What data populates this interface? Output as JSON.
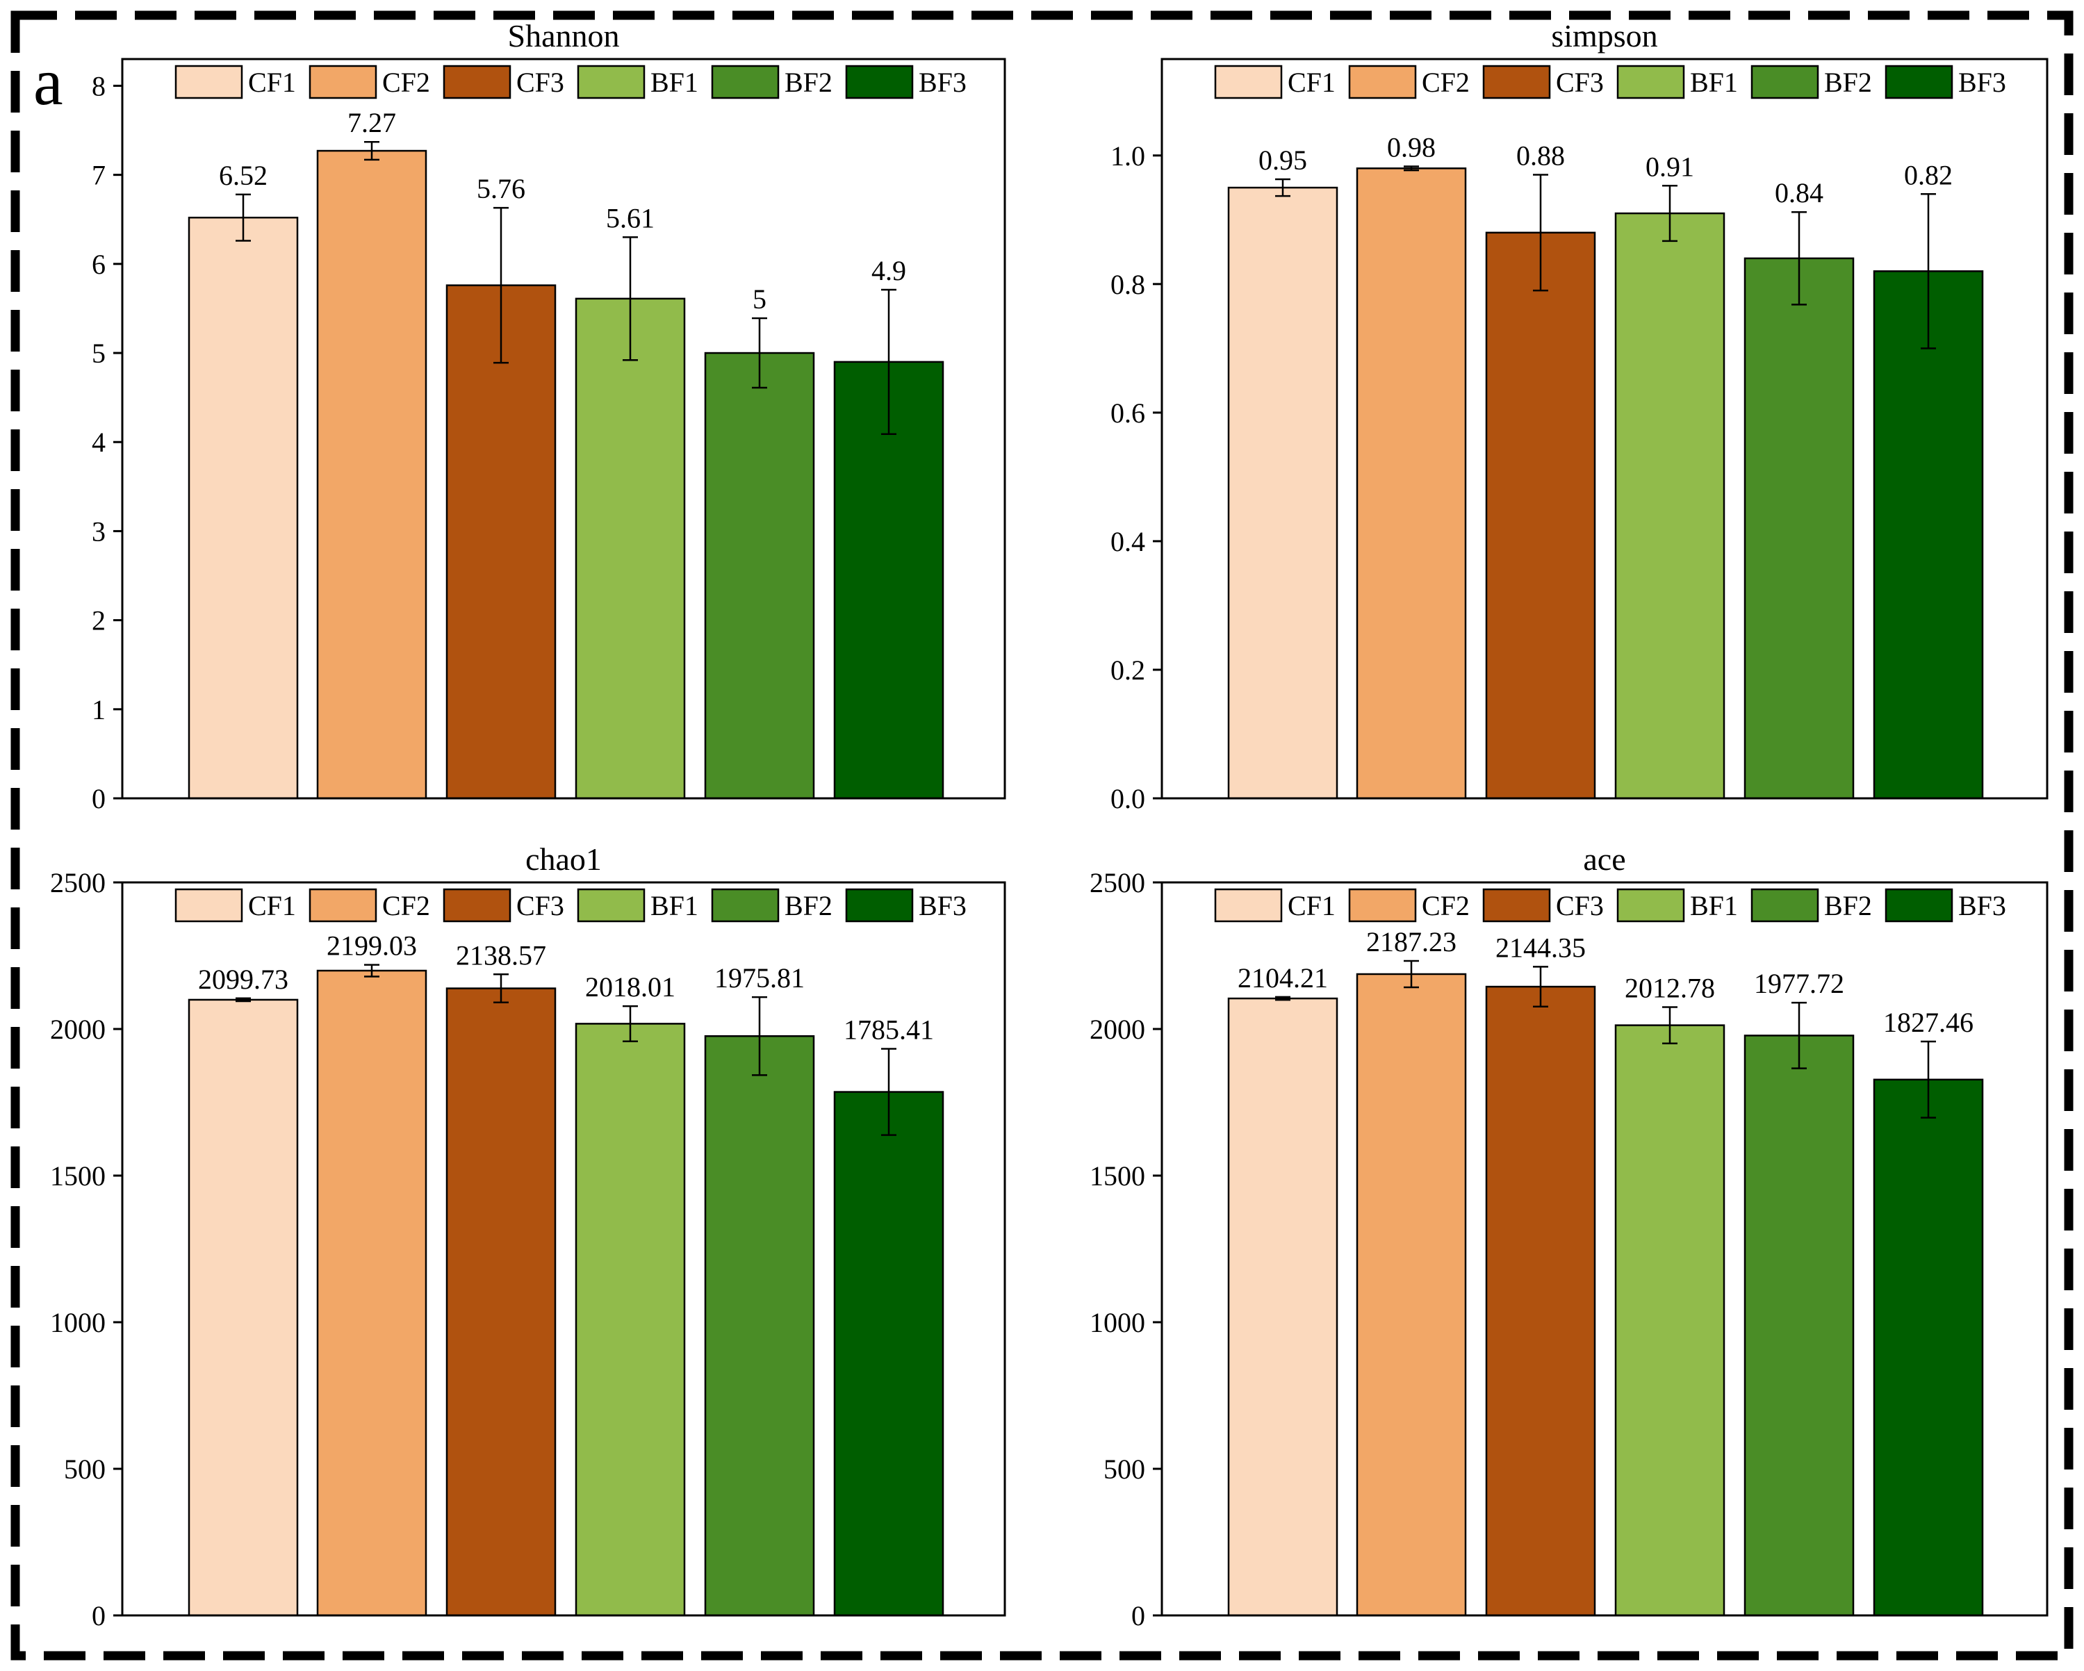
{
  "panel_label": "a",
  "legend": [
    "CF1",
    "CF2",
    "CF3",
    "BF1",
    "BF2",
    "BF3"
  ],
  "colors": {
    "CF1": "#fbd9bd",
    "CF2": "#f2a767",
    "CF3": "#b0520f",
    "BF1": "#91bb4b",
    "BF2": "#4a8d26",
    "BF3": "#005e00"
  },
  "chart_data": [
    {
      "type": "bar",
      "title": "Shannon",
      "categories": [
        "CF1",
        "CF2",
        "CF3",
        "BF1",
        "BF2",
        "BF3"
      ],
      "values": [
        6.52,
        7.27,
        5.76,
        5.61,
        5,
        4.9
      ],
      "errors": [
        0.26,
        0.1,
        0.87,
        0.69,
        0.39,
        0.81
      ],
      "value_labels": [
        "6.52",
        "7.27",
        "5.76",
        "5.61",
        "5",
        "4.9"
      ],
      "ylim": [
        0,
        8.3
      ],
      "yticks": [
        0,
        1,
        2,
        3,
        4,
        5,
        6,
        7,
        8
      ],
      "ytick_labels": [
        "0",
        "1",
        "2",
        "3",
        "4",
        "5",
        "6",
        "7",
        "8"
      ],
      "legend_placement": "top"
    },
    {
      "type": "bar",
      "title": "simpson",
      "categories": [
        "CF1",
        "CF2",
        "CF3",
        "BF1",
        "BF2",
        "BF3"
      ],
      "values": [
        0.95,
        0.98,
        0.88,
        0.91,
        0.84,
        0.82
      ],
      "errors": [
        0.013,
        0.003,
        0.09,
        0.043,
        0.072,
        0.12
      ],
      "value_labels": [
        "0.95",
        "0.98",
        "0.88",
        "0.91",
        "0.84",
        "0.82"
      ],
      "ylim": [
        0,
        1.15
      ],
      "yticks": [
        0,
        0.2,
        0.4,
        0.6,
        0.8,
        1.0
      ],
      "ytick_labels": [
        "0.0",
        "0.2",
        "0.4",
        "0.6",
        "0.8",
        "1.0"
      ],
      "legend_placement": "top"
    },
    {
      "type": "bar",
      "title": "chao1",
      "categories": [
        "CF1",
        "CF2",
        "CF3",
        "BF1",
        "BF2",
        "BF3"
      ],
      "values": [
        2099.73,
        2199.03,
        2138.57,
        2018.01,
        1975.81,
        1785.41
      ],
      "errors": [
        5,
        20,
        48,
        60,
        133,
        147
      ],
      "value_labels": [
        "2099.73",
        "2199.03",
        "2138.57",
        "2018.01",
        "1975.81",
        "1785.41"
      ],
      "ylim": [
        0,
        2500
      ],
      "yticks": [
        0,
        500,
        1000,
        1500,
        2000,
        2500
      ],
      "ytick_labels": [
        "0",
        "500",
        "1000",
        "1500",
        "2000",
        "2500"
      ],
      "legend_placement": "top"
    },
    {
      "type": "bar",
      "title": "ace",
      "categories": [
        "CF1",
        "CF2",
        "CF3",
        "BF1",
        "BF2",
        "BF3"
      ],
      "values": [
        2104.21,
        2187.23,
        2144.35,
        2012.78,
        1977.72,
        1827.46
      ],
      "errors": [
        5,
        45,
        68,
        62,
        112,
        130
      ],
      "value_labels": [
        "2104.21",
        "2187.23",
        "2144.35",
        "2012.78",
        "1977.72",
        "1827.46"
      ],
      "ylim": [
        0,
        2500
      ],
      "yticks": [
        0,
        500,
        1000,
        1500,
        2000,
        2500
      ],
      "ytick_labels": [
        "0",
        "500",
        "1000",
        "1500",
        "2000",
        "2500"
      ],
      "legend_placement": "top"
    }
  ]
}
